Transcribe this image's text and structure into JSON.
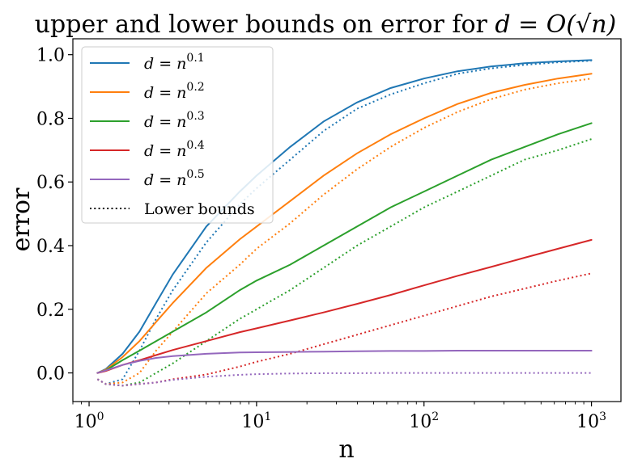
{
  "chart_data": {
    "type": "line",
    "title": "upper and lower bounds on error for d = O(√n)",
    "title_parts": {
      "prefix": "upper and lower bounds on error for ",
      "math": "d = O(√n)"
    },
    "xlabel": "n",
    "ylabel": "error",
    "xscale": "log",
    "xlim": [
      0.8,
      1500
    ],
    "ylim": [
      -0.09,
      1.05
    ],
    "xticks": [
      {
        "value": 1,
        "base": "10",
        "exp": "0"
      },
      {
        "value": 10,
        "base": "10",
        "exp": "1"
      },
      {
        "value": 100,
        "base": "10",
        "exp": "2"
      },
      {
        "value": 1000,
        "base": "10",
        "exp": "3"
      }
    ],
    "yticks": [
      "0.0",
      "0.2",
      "0.4",
      "0.6",
      "0.8",
      "1.0"
    ],
    "grid": false,
    "legend_position": "top-left",
    "legend_extra": "Lower bounds",
    "x": [
      1.122,
      1.259,
      1.585,
      2,
      2.512,
      3.162,
      5.012,
      7.943,
      10,
      15.85,
      25.12,
      39.81,
      63.1,
      100,
      158.5,
      251.2,
      398.1,
      631,
      1000
    ],
    "series": [
      {
        "name": "d = n^0.1",
        "base": "d = n",
        "exp": "0.1",
        "color": "#1f77b4",
        "style": "solid",
        "values": [
          0.0,
          0.012,
          0.06,
          0.13,
          0.22,
          0.31,
          0.46,
          0.57,
          0.62,
          0.71,
          0.79,
          0.85,
          0.895,
          0.925,
          0.948,
          0.963,
          0.973,
          0.979,
          0.983
        ]
      },
      {
        "name": "d = n^0.1 (lower)",
        "color": "#1f77b4",
        "style": "dotted",
        "values": [
          -0.02,
          -0.035,
          -0.02,
          0.07,
          0.17,
          0.26,
          0.41,
          0.53,
          0.58,
          0.67,
          0.76,
          0.83,
          0.875,
          0.91,
          0.94,
          0.957,
          0.968,
          0.976,
          0.981
        ]
      },
      {
        "name": "d = n^0.2",
        "base": "d = n",
        "exp": "0.2",
        "color": "#ff7f0e",
        "style": "solid",
        "values": [
          0.0,
          0.01,
          0.05,
          0.1,
          0.16,
          0.22,
          0.33,
          0.42,
          0.46,
          0.54,
          0.62,
          0.69,
          0.75,
          0.8,
          0.845,
          0.88,
          0.905,
          0.925,
          0.94
        ]
      },
      {
        "name": "d = n^0.2 (lower)",
        "color": "#ff7f0e",
        "style": "dotted",
        "values": [
          -0.02,
          -0.035,
          -0.03,
          0.0,
          0.07,
          0.13,
          0.25,
          0.34,
          0.39,
          0.47,
          0.56,
          0.64,
          0.71,
          0.77,
          0.82,
          0.86,
          0.89,
          0.91,
          0.925
        ]
      },
      {
        "name": "d = n^0.3",
        "base": "d = n",
        "exp": "0.3",
        "color": "#2ca02c",
        "style": "solid",
        "values": [
          0.0,
          0.008,
          0.04,
          0.07,
          0.1,
          0.13,
          0.19,
          0.26,
          0.29,
          0.34,
          0.4,
          0.46,
          0.52,
          0.57,
          0.62,
          0.67,
          0.71,
          0.75,
          0.785
        ]
      },
      {
        "name": "d = n^0.3 (lower)",
        "color": "#2ca02c",
        "style": "dotted",
        "values": [
          -0.02,
          -0.035,
          -0.04,
          -0.03,
          0.0,
          0.03,
          0.1,
          0.17,
          0.2,
          0.26,
          0.33,
          0.4,
          0.46,
          0.52,
          0.57,
          0.62,
          0.67,
          0.7,
          0.735
        ]
      },
      {
        "name": "d = n^0.4",
        "base": "d = n",
        "exp": "0.4",
        "color": "#d62728",
        "style": "solid",
        "values": [
          0.0,
          0.006,
          0.025,
          0.04,
          0.056,
          0.072,
          0.1,
          0.128,
          0.14,
          0.165,
          0.19,
          0.217,
          0.245,
          0.275,
          0.305,
          0.333,
          0.362,
          0.39,
          0.418
        ]
      },
      {
        "name": "d = n^0.4 (lower)",
        "color": "#d62728",
        "style": "dotted",
        "values": [
          -0.02,
          -0.035,
          -0.04,
          -0.035,
          -0.03,
          -0.02,
          -0.005,
          0.02,
          0.035,
          0.06,
          0.09,
          0.12,
          0.15,
          0.18,
          0.21,
          0.24,
          0.265,
          0.29,
          0.313
        ]
      },
      {
        "name": "d = n^0.5",
        "base": "d = n",
        "exp": "0.5",
        "color": "#9467bd",
        "style": "solid",
        "values": [
          0.0,
          0.008,
          0.025,
          0.038,
          0.047,
          0.053,
          0.06,
          0.064,
          0.065,
          0.066,
          0.067,
          0.068,
          0.069,
          0.069,
          0.07,
          0.07,
          0.07,
          0.07,
          0.07
        ]
      },
      {
        "name": "d = n^0.5 (lower)",
        "color": "#9467bd",
        "style": "dotted",
        "values": [
          -0.02,
          -0.035,
          -0.04,
          -0.035,
          -0.03,
          -0.022,
          -0.012,
          -0.006,
          -0.004,
          -0.002,
          -0.001,
          -0.001,
          0.0,
          0.0,
          0.0,
          0.0,
          0.0,
          0.0,
          0.0
        ]
      }
    ]
  }
}
